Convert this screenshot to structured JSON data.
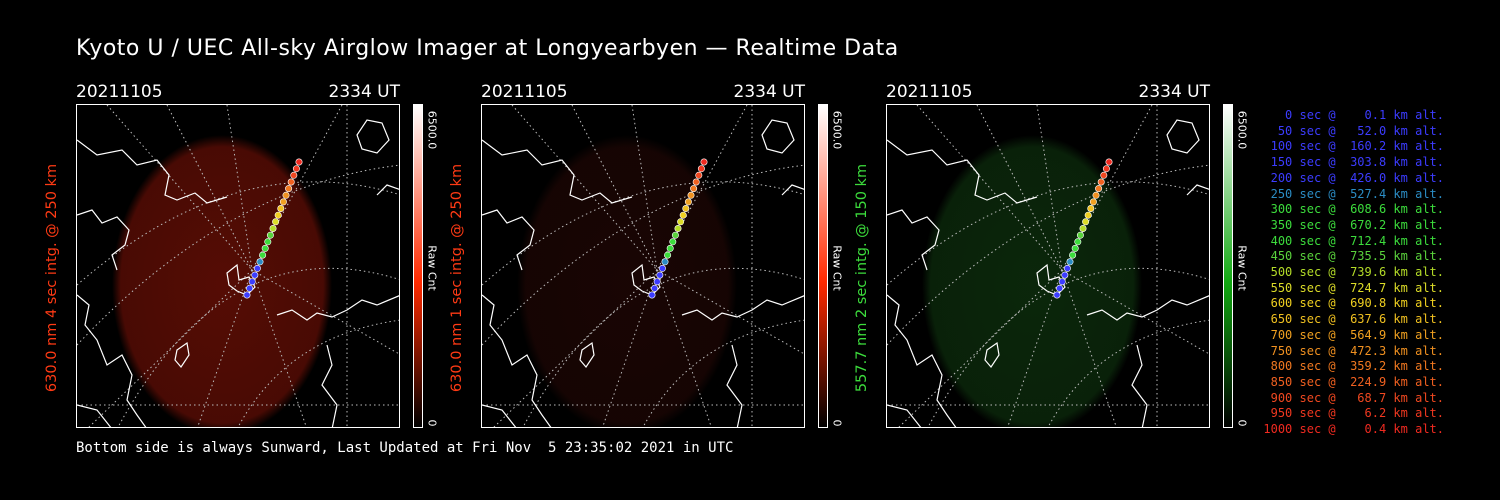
{
  "title": "Kyoto U / UEC All-sky Airglow Imager at Longyearbyen — Realtime Data",
  "panels": [
    {
      "date": "20211105",
      "time": "2334 UT",
      "label": "630.0 nm  4 sec intg. @ 250 km",
      "label_color": "#ff3a14",
      "cbar_max": "6500.0",
      "cbar_min": "0",
      "cbar_unit": "Raw Cnt",
      "cbar_color": "#ff2a00",
      "glow_color": "#5a0d05",
      "glow_intensity": 0.95
    },
    {
      "date": "20211105",
      "time": "2334 UT",
      "label": "630.0 nm  1 sec intg. @ 250 km",
      "label_color": "#ff3a14",
      "cbar_max": "6500.0",
      "cbar_min": "0",
      "cbar_unit": "Raw Cnt",
      "cbar_color": "#ff2a00",
      "glow_color": "#1c0604",
      "glow_intensity": 0.9
    },
    {
      "date": "20211105",
      "time": "2334 UT",
      "label": "557.7 nm  2 sec intg. @ 150 km",
      "label_color": "#3cdc3c",
      "cbar_max": "6500.0",
      "cbar_min": "0",
      "cbar_unit": "Raw Cnt",
      "cbar_color": "#12a812",
      "glow_color": "#0c2b0c",
      "glow_intensity": 0.9
    }
  ],
  "legend": [
    {
      "text": "   0 sec @    0.1 km alt.",
      "color": "#3c3cff"
    },
    {
      "text": "  50 sec @   52.0 km alt.",
      "color": "#3c3cff"
    },
    {
      "text": " 100 sec @  160.2 km alt.",
      "color": "#3c3cff"
    },
    {
      "text": " 150 sec @  303.8 km alt.",
      "color": "#3c3cff"
    },
    {
      "text": " 200 sec @  426.0 km alt.",
      "color": "#3c3cff"
    },
    {
      "text": " 250 sec @  527.4 km alt.",
      "color": "#2b8cc4"
    },
    {
      "text": " 300 sec @  608.6 km alt.",
      "color": "#3cdc3c"
    },
    {
      "text": " 350 sec @  670.2 km alt.",
      "color": "#3cdc3c"
    },
    {
      "text": " 400 sec @  712.4 km alt.",
      "color": "#3cdc3c"
    },
    {
      "text": " 450 sec @  735.5 km alt.",
      "color": "#5ad23c"
    },
    {
      "text": " 500 sec @  739.6 km alt.",
      "color": "#b4dc28"
    },
    {
      "text": " 550 sec @  724.7 km alt.",
      "color": "#dcdc28"
    },
    {
      "text": " 600 sec @  690.8 km alt.",
      "color": "#f0d020"
    },
    {
      "text": " 650 sec @  637.6 km alt.",
      "color": "#f0c020"
    },
    {
      "text": " 700 sec @  564.9 km alt.",
      "color": "#f0a020"
    },
    {
      "text": " 750 sec @  472.3 km alt.",
      "color": "#f09020"
    },
    {
      "text": " 800 sec @  359.2 km alt.",
      "color": "#f07820"
    },
    {
      "text": " 850 sec @  224.9 km alt.",
      "color": "#f06020"
    },
    {
      "text": " 900 sec @   68.7 km alt.",
      "color": "#f04820"
    },
    {
      "text": " 950 sec @    6.2 km alt.",
      "color": "#f03820"
    },
    {
      "text": "1000 sec @    0.4 km alt.",
      "color": "#f02a20"
    }
  ],
  "footer": "Bottom side is always Sunward, Last Updated at Fri Nov  5 23:35:02 2021 in UTC"
}
